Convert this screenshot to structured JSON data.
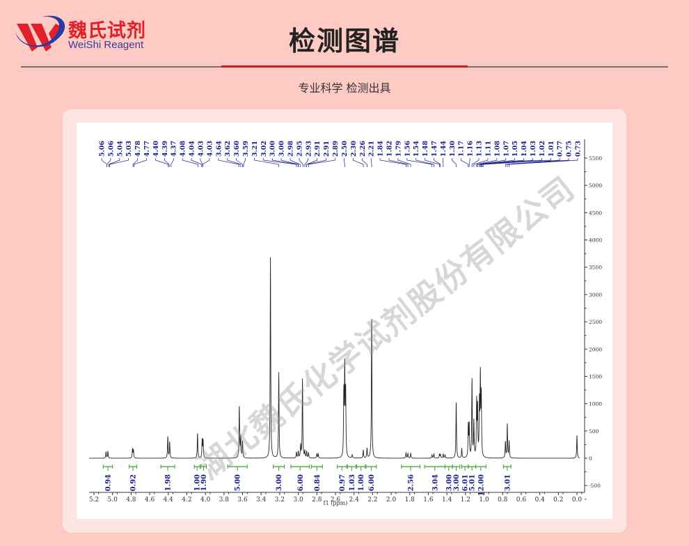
{
  "header": {
    "logo_cn": "魏氏试剂",
    "logo_en": "WeiShi Reagent",
    "title": "检测图谱",
    "subtitle": "专业科学  检测出具"
  },
  "watermark": "湖北魏氏化学试剂股份有限公司",
  "colors": {
    "background": "#fdcac4",
    "card": "#fde5e1",
    "accent_red": "#c81e1e",
    "label_blue": "#1a1a8c",
    "integral_green": "#3aa02a",
    "spectrum": "#222222"
  },
  "chart_data": {
    "type": "line",
    "title": "",
    "xlabel": "f1 (ppm)",
    "ylabel": "",
    "xlim": [
      5.2,
      0.0
    ],
    "ylim": [
      -500,
      5500
    ],
    "x_reversed": true,
    "y_axis_position": "right",
    "grid": false,
    "x_ticks": [
      "5.2",
      "5.0",
      "4.8",
      "4.6",
      "4.4",
      "4.2",
      "4.0",
      "3.8",
      "3.6",
      "3.4",
      "3.2",
      "3.0",
      "2.8",
      "2.6",
      "2.4",
      "2.2",
      "2.0",
      "1.8",
      "1.6",
      "1.4",
      "1.2",
      "1.0",
      "0.8",
      "0.6",
      "0.4",
      "0.2",
      "0.0"
    ],
    "y_ticks": [
      "5500",
      "5000",
      "4500",
      "4000",
      "3500",
      "3000",
      "2500",
      "2000",
      "1500",
      "1000",
      "500",
      "0",
      "-500"
    ],
    "peaks": [
      [
        5.07,
        120
      ],
      [
        5.05,
        130
      ],
      [
        4.785,
        170
      ],
      [
        4.775,
        150
      ],
      [
        4.405,
        400
      ],
      [
        4.385,
        300
      ],
      [
        4.085,
        460
      ],
      [
        4.035,
        330
      ],
      [
        4.025,
        330
      ],
      [
        3.635,
        950
      ],
      [
        3.62,
        380
      ],
      [
        3.6,
        300
      ],
      [
        3.3,
        3680
      ],
      [
        3.21,
        1570
      ],
      [
        3.02,
        110
      ],
      [
        3.0,
        120
      ],
      [
        2.975,
        230
      ],
      [
        2.955,
        1450
      ],
      [
        2.93,
        120
      ],
      [
        2.91,
        120
      ],
      [
        2.89,
        100
      ],
      [
        2.8,
        80
      ],
      [
        2.785,
        80
      ],
      [
        2.51,
        1150
      ],
      [
        2.5,
        1610
      ],
      [
        2.49,
        1150
      ],
      [
        2.42,
        60
      ],
      [
        2.3,
        150
      ],
      [
        2.26,
        180
      ],
      [
        2.21,
        2600
      ],
      [
        1.84,
        100
      ],
      [
        1.82,
        90
      ],
      [
        1.79,
        90
      ],
      [
        1.56,
        60
      ],
      [
        1.54,
        80
      ],
      [
        1.48,
        70
      ],
      [
        1.47,
        70
      ],
      [
        1.44,
        80
      ],
      [
        1.42,
        60
      ],
      [
        1.3,
        1040
      ],
      [
        1.24,
        180
      ],
      [
        1.17,
        580
      ],
      [
        1.16,
        600
      ],
      [
        1.13,
        1450
      ],
      [
        1.11,
        650
      ],
      [
        1.08,
        1000
      ],
      [
        1.07,
        900
      ],
      [
        1.05,
        950
      ],
      [
        1.04,
        1450
      ],
      [
        1.03,
        1100
      ],
      [
        0.77,
        300
      ],
      [
        0.75,
        620
      ],
      [
        0.73,
        310
      ],
      [
        0.0,
        420
      ]
    ],
    "peak_labels": [
      "5.06",
      "5.06",
      "5.04",
      "5.03",
      "4.78",
      "4.77",
      "4.40",
      "4.39",
      "4.37",
      "4.08",
      "4.04",
      "4.03",
      "4.03",
      "3.64",
      "3.62",
      "3.60",
      "3.59",
      "3.21",
      "3.02",
      "3.00",
      "3.00",
      "2.98",
      "2.95",
      "2.93",
      "2.91",
      "2.91",
      "2.89",
      "2.50",
      "2.30",
      "2.26",
      "2.21",
      "1.84",
      "1.82",
      "1.79",
      "1.56",
      "1.54",
      "1.48",
      "1.47",
      "1.44",
      "1.30",
      "1.17",
      "1.16",
      "1.13",
      "1.11",
      "1.08",
      "1.07",
      "1.05",
      "1.04",
      "1.03",
      "1.02",
      "1.01",
      "0.77",
      "0.75",
      "0.73"
    ],
    "integrals": [
      {
        "from": 5.1,
        "to": 5.0,
        "value": "0.94"
      },
      {
        "from": 4.82,
        "to": 4.74,
        "value": "0.92"
      },
      {
        "from": 4.48,
        "to": 4.33,
        "value": "1.98"
      },
      {
        "from": 4.12,
        "to": 4.06,
        "value": "1.00"
      },
      {
        "from": 4.05,
        "to": 3.99,
        "value": "1.90"
      },
      {
        "from": 3.76,
        "to": 3.55,
        "value": "5.00"
      },
      {
        "from": 3.27,
        "to": 3.15,
        "value": "3.00"
      },
      {
        "from": 3.08,
        "to": 2.88,
        "value": "6.00"
      },
      {
        "from": 2.86,
        "to": 2.74,
        "value": "0.84"
      },
      {
        "from": 2.58,
        "to": 2.48,
        "value": "0.97"
      },
      {
        "from": 2.47,
        "to": 2.38,
        "value": "1.03"
      },
      {
        "from": 2.37,
        "to": 2.28,
        "value": "1.00"
      },
      {
        "from": 2.27,
        "to": 2.16,
        "value": "6.00"
      },
      {
        "from": 1.89,
        "to": 1.69,
        "value": "2.56"
      },
      {
        "from": 1.64,
        "to": 1.42,
        "value": "3.04"
      },
      {
        "from": 1.42,
        "to": 1.34,
        "value": "3.00"
      },
      {
        "from": 1.34,
        "to": 1.26,
        "value": "3.00"
      },
      {
        "from": 1.24,
        "to": 1.17,
        "value": "6.01"
      },
      {
        "from": 1.17,
        "to": 1.09,
        "value": "5.01"
      },
      {
        "from": 1.09,
        "to": 0.98,
        "value": "12.00"
      },
      {
        "from": 0.79,
        "to": 0.71,
        "value": "3.01"
      }
    ]
  }
}
